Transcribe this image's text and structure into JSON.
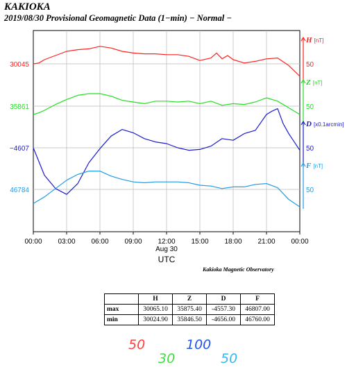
{
  "header": {
    "station": "KAKIOKA",
    "subtitle": "2019/08/30  Provisional Geomagnetic Data (1−min)  − Normal −"
  },
  "chart_data": {
    "type": "line",
    "x_ticks": [
      "00:00",
      "03:00",
      "06:00",
      "09:00",
      "12:00",
      "15:00",
      "18:00",
      "21:00",
      "00:00"
    ],
    "x_hours": [
      0,
      3,
      6,
      9,
      12,
      15,
      18,
      21,
      24
    ],
    "x_date_label": "Aug 30",
    "xlabel": "UTC",
    "grid": true,
    "series": [
      {
        "name": "H",
        "unit": "[nT]",
        "ref_value": "30045",
        "scale_label": "50",
        "scale_value": 50,
        "color": "#ff2020",
        "points": [
          [
            0,
            30045
          ],
          [
            0.5,
            30046
          ],
          [
            1,
            30050
          ],
          [
            2,
            30055
          ],
          [
            3,
            30060
          ],
          [
            4,
            30062
          ],
          [
            5,
            30063
          ],
          [
            6,
            30066
          ],
          [
            7,
            30064
          ],
          [
            8,
            30060
          ],
          [
            9,
            30058
          ],
          [
            10,
            30057
          ],
          [
            11,
            30057
          ],
          [
            12,
            30056
          ],
          [
            13,
            30056
          ],
          [
            14,
            30054
          ],
          [
            15,
            30049
          ],
          [
            16,
            30052
          ],
          [
            16.5,
            30058
          ],
          [
            17,
            30051
          ],
          [
            17.5,
            30055
          ],
          [
            18,
            30050
          ],
          [
            19,
            30046
          ],
          [
            20,
            30048
          ],
          [
            21,
            30051
          ],
          [
            22,
            30052
          ],
          [
            23,
            30043
          ],
          [
            24,
            30030
          ]
        ]
      },
      {
        "name": "Z",
        "unit": "[nT]",
        "ref_value": "35861",
        "scale_label": "50",
        "scale_value": 50,
        "color": "#20e020",
        "points": [
          [
            0,
            35851
          ],
          [
            0.5,
            35853
          ],
          [
            1,
            35856
          ],
          [
            2,
            35863
          ],
          [
            3,
            35869
          ],
          [
            4,
            35874
          ],
          [
            5,
            35876
          ],
          [
            6,
            35876
          ],
          [
            7,
            35873
          ],
          [
            8,
            35868
          ],
          [
            9,
            35866
          ],
          [
            10,
            35864
          ],
          [
            11,
            35867
          ],
          [
            12,
            35867
          ],
          [
            13,
            35866
          ],
          [
            14,
            35867
          ],
          [
            15,
            35864
          ],
          [
            16,
            35867
          ],
          [
            17,
            35862
          ],
          [
            18,
            35864
          ],
          [
            19,
            35863
          ],
          [
            20,
            35866
          ],
          [
            21,
            35871
          ],
          [
            22,
            35867
          ],
          [
            23,
            35859
          ],
          [
            24,
            35851
          ]
        ]
      },
      {
        "name": "D",
        "unit": "[x0.1arcmin]",
        "ref_value": "−4607",
        "scale_label": "50",
        "scale_value": 50,
        "color": "#1a1ad0",
        "points": [
          [
            0,
            -4607
          ],
          [
            1,
            -4640
          ],
          [
            2,
            -4656
          ],
          [
            3,
            -4663
          ],
          [
            4,
            -4650
          ],
          [
            5,
            -4625
          ],
          [
            6,
            -4608
          ],
          [
            7,
            -4593
          ],
          [
            8,
            -4585
          ],
          [
            9,
            -4589
          ],
          [
            10,
            -4596
          ],
          [
            11,
            -4600
          ],
          [
            12,
            -4602
          ],
          [
            13,
            -4607
          ],
          [
            14,
            -4610
          ],
          [
            15,
            -4609
          ],
          [
            16,
            -4605
          ],
          [
            17,
            -4596
          ],
          [
            18,
            -4598
          ],
          [
            19,
            -4590
          ],
          [
            20,
            -4586
          ],
          [
            21,
            -4567
          ],
          [
            21.5,
            -4563
          ],
          [
            22,
            -4560
          ],
          [
            22.5,
            -4578
          ],
          [
            23,
            -4590
          ],
          [
            24,
            -4610
          ]
        ]
      },
      {
        "name": "F",
        "unit": "[nT]",
        "ref_value": "46784",
        "scale_label": "50",
        "scale_value": 50,
        "color": "#1e9be6",
        "points": [
          [
            0,
            46767
          ],
          [
            1,
            46775
          ],
          [
            2,
            46785
          ],
          [
            3,
            46795
          ],
          [
            4,
            46802
          ],
          [
            5,
            46806
          ],
          [
            6,
            46806
          ],
          [
            7,
            46800
          ],
          [
            8,
            46796
          ],
          [
            9,
            46793
          ],
          [
            10,
            46792
          ],
          [
            11,
            46793
          ],
          [
            12,
            46793
          ],
          [
            13,
            46793
          ],
          [
            14,
            46792
          ],
          [
            15,
            46789
          ],
          [
            16,
            46788
          ],
          [
            17,
            46785
          ],
          [
            18,
            46787
          ],
          [
            19,
            46787
          ],
          [
            20,
            46790
          ],
          [
            21,
            46791
          ],
          [
            22,
            46786
          ],
          [
            23,
            46772
          ],
          [
            24,
            46763
          ]
        ]
      }
    ]
  },
  "credit": "Kakioka Magnetic Observatory",
  "stats": {
    "columns": [
      "H",
      "Z",
      "D",
      "F"
    ],
    "rows": [
      {
        "label": "max",
        "values": [
          "30065.10",
          "35875.40",
          "-4557.30",
          "46807.00"
        ]
      },
      {
        "label": "min",
        "values": [
          "30024.90",
          "35846.50",
          "-4656.00",
          "46760.00"
        ]
      }
    ]
  },
  "handwriting": [
    {
      "text": "50",
      "color": "#ff4040"
    },
    {
      "text": "30",
      "color": "#44dd44"
    },
    {
      "text": "100",
      "color": "#2255ee"
    },
    {
      "text": "50",
      "color": "#33bbee"
    }
  ]
}
